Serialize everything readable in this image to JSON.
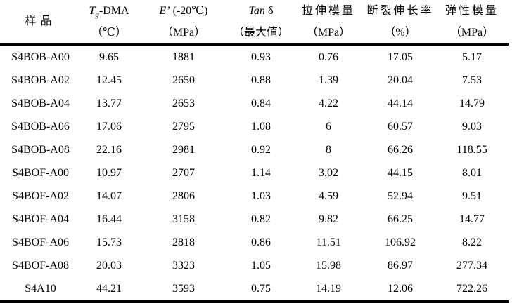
{
  "table": {
    "type": "table",
    "columns": [
      {
        "label": "样品"
      },
      {
        "main_italic": "T",
        "main_sub": "g",
        "main_rest": "-DMA",
        "unit": "（℃）"
      },
      {
        "main_italic": "E’",
        "main_rest": " (-20℃)",
        "unit": "（MPa）"
      },
      {
        "main_italic": "Tan",
        "main_rest": " δ",
        "unit": "（最大值）"
      },
      {
        "label": "拉伸模量",
        "unit": "（MPa）"
      },
      {
        "label": "断裂伸长率",
        "unit": "（%）"
      },
      {
        "label": "弹性模量",
        "unit": "（MPa）"
      }
    ],
    "rows": [
      [
        "S4BOB-A00",
        "9.65",
        "1881",
        "0.93",
        "0.76",
        "17.05",
        "5.17"
      ],
      [
        "S4BOB-A02",
        "12.45",
        "2650",
        "0.88",
        "1.39",
        "20.04",
        "7.53"
      ],
      [
        "S4BOB-A04",
        "13.77",
        "2653",
        "0.84",
        "4.22",
        "44.14",
        "14.79"
      ],
      [
        "S4BOB-A06",
        "17.06",
        "2795",
        "1.08",
        "6",
        "60.57",
        "9.03"
      ],
      [
        "S4BOB-A08",
        "22.16",
        "2981",
        "0.92",
        "8",
        "66.26",
        "118.55"
      ],
      [
        "S4BOF-A00",
        "10.97",
        "2707",
        "1.14",
        "3.02",
        "44.15",
        "8.01"
      ],
      [
        "S4BOF-A02",
        "14.07",
        "2806",
        "1.03",
        "4.59",
        "52.94",
        "9.51"
      ],
      [
        "S4BOF-A04",
        "16.44",
        "3158",
        "0.82",
        "9.82",
        "66.25",
        "14.77"
      ],
      [
        "S4BOF-A06",
        "15.73",
        "2818",
        "0.86",
        "11.51",
        "106.92",
        "8.22"
      ],
      [
        "S4BOF-A08",
        "20.03",
        "3323",
        "1.05",
        "15.98",
        "86.97",
        "277.34"
      ],
      [
        "S4A10",
        "44.21",
        "3593",
        "0.75",
        "14.19",
        "12.06",
        "722.26"
      ]
    ],
    "colors": {
      "rule": "#000000",
      "text": "#000000",
      "background": "#ffffff"
    }
  }
}
